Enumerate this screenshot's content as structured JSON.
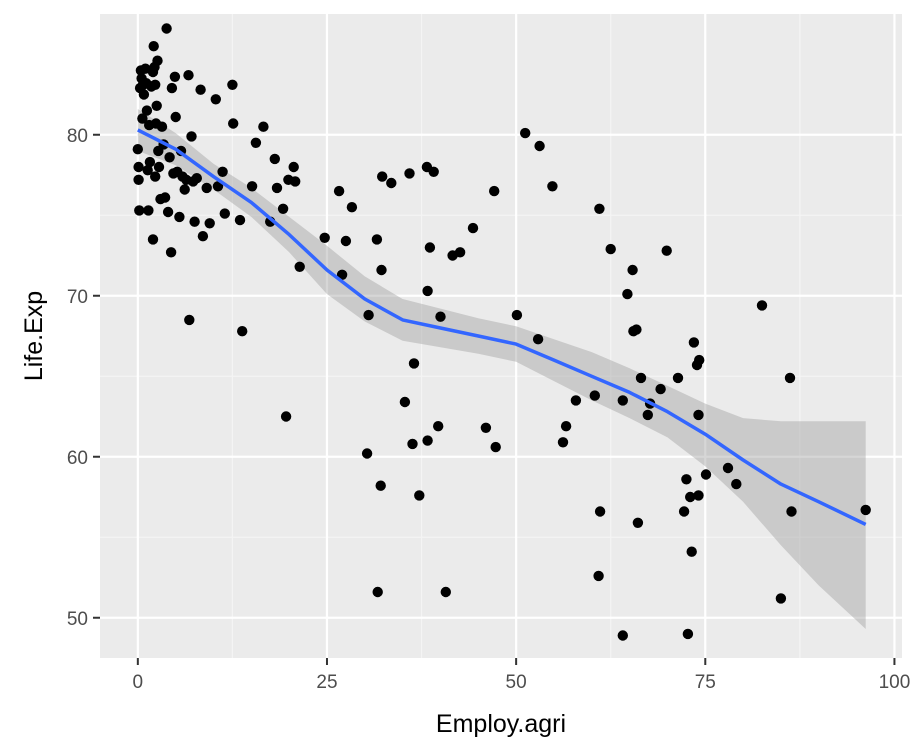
{
  "chart_data": {
    "type": "scatter",
    "xlabel": "Employ.agri",
    "ylabel": "Life.Exp",
    "xlim": [
      -5,
      101
    ],
    "ylim": [
      47.5,
      87.5
    ],
    "x_ticks": [
      0,
      25,
      50,
      75,
      100
    ],
    "x_tick_labels": [
      "0",
      "25",
      "50",
      "75",
      "100"
    ],
    "y_ticks": [
      50,
      60,
      70,
      80
    ],
    "y_tick_labels": [
      "50",
      "60",
      "70",
      "80"
    ],
    "grid": true,
    "legend": "none",
    "colors": {
      "panel": "#ebebeb",
      "grid_major": "#ffffff",
      "grid_minor": "#f4f4f4",
      "points": "#000000",
      "smooth_line": "#3366ff",
      "ribbon": "#999999"
    },
    "points": [
      [
        0.0,
        79.1
      ],
      [
        0.1,
        77.2
      ],
      [
        0.1,
        78.0
      ],
      [
        0.2,
        75.3
      ],
      [
        0.3,
        82.9
      ],
      [
        0.4,
        84.0
      ],
      [
        0.5,
        83.5
      ],
      [
        0.6,
        81.0
      ],
      [
        0.7,
        83.1
      ],
      [
        0.8,
        82.5
      ],
      [
        1.0,
        84.1
      ],
      [
        1.1,
        83.2
      ],
      [
        1.2,
        81.5
      ],
      [
        1.3,
        77.8
      ],
      [
        1.4,
        75.3
      ],
      [
        1.5,
        80.6
      ],
      [
        1.6,
        78.3
      ],
      [
        1.8,
        83.0
      ],
      [
        2.0,
        83.9
      ],
      [
        2.1,
        85.5
      ],
      [
        2.2,
        84.2
      ],
      [
        2.3,
        83.1
      ],
      [
        2.4,
        80.7
      ],
      [
        2.5,
        81.8
      ],
      [
        2.6,
        84.6
      ],
      [
        2.7,
        79.0
      ],
      [
        2.8,
        78.0
      ],
      [
        3.0,
        76.0
      ],
      [
        3.2,
        80.5
      ],
      [
        3.4,
        79.4
      ],
      [
        2.0,
        73.5
      ],
      [
        2.3,
        77.4
      ],
      [
        3.6,
        76.1
      ],
      [
        3.8,
        86.6
      ],
      [
        4.0,
        75.2
      ],
      [
        4.2,
        78.6
      ],
      [
        4.4,
        72.7
      ],
      [
        4.5,
        82.9
      ],
      [
        4.7,
        77.6
      ],
      [
        4.9,
        83.6
      ],
      [
        5.0,
        81.1
      ],
      [
        5.2,
        77.7
      ],
      [
        5.5,
        74.9
      ],
      [
        5.7,
        79.0
      ],
      [
        5.9,
        77.4
      ],
      [
        6.2,
        76.6
      ],
      [
        6.4,
        77.2
      ],
      [
        6.7,
        83.7
      ],
      [
        6.8,
        68.5
      ],
      [
        7.1,
        79.9
      ],
      [
        7.3,
        77.1
      ],
      [
        7.5,
        74.6
      ],
      [
        7.8,
        77.3
      ],
      [
        8.3,
        82.8
      ],
      [
        8.6,
        73.7
      ],
      [
        9.1,
        76.7
      ],
      [
        9.5,
        74.5
      ],
      [
        10.3,
        82.2
      ],
      [
        10.6,
        76.8
      ],
      [
        11.2,
        77.7
      ],
      [
        11.5,
        75.1
      ],
      [
        12.5,
        83.1
      ],
      [
        12.6,
        80.7
      ],
      [
        13.5,
        74.7
      ],
      [
        13.8,
        67.8
      ],
      [
        15.1,
        76.8
      ],
      [
        15.6,
        79.5
      ],
      [
        16.6,
        80.5
      ],
      [
        17.5,
        74.6
      ],
      [
        18.1,
        78.5
      ],
      [
        18.4,
        76.7
      ],
      [
        19.2,
        75.4
      ],
      [
        19.6,
        62.5
      ],
      [
        19.9,
        77.2
      ],
      [
        20.6,
        78.0
      ],
      [
        20.8,
        77.1
      ],
      [
        21.4,
        71.8
      ],
      [
        24.7,
        73.6
      ],
      [
        26.6,
        76.5
      ],
      [
        27.0,
        71.3
      ],
      [
        27.5,
        73.4
      ],
      [
        28.3,
        75.5
      ],
      [
        30.3,
        60.2
      ],
      [
        30.5,
        68.8
      ],
      [
        31.6,
        73.5
      ],
      [
        31.7,
        51.6
      ],
      [
        32.1,
        58.2
      ],
      [
        32.2,
        71.6
      ],
      [
        32.3,
        77.4
      ],
      [
        33.5,
        77.0
      ],
      [
        35.3,
        63.4
      ],
      [
        35.9,
        77.6
      ],
      [
        36.3,
        60.8
      ],
      [
        36.5,
        65.8
      ],
      [
        37.2,
        57.6
      ],
      [
        38.2,
        78.0
      ],
      [
        38.3,
        61.0
      ],
      [
        38.3,
        70.3
      ],
      [
        38.6,
        73.0
      ],
      [
        39.1,
        77.7
      ],
      [
        39.7,
        61.9
      ],
      [
        40.0,
        68.7
      ],
      [
        40.7,
        51.6
      ],
      [
        41.6,
        72.5
      ],
      [
        42.6,
        72.7
      ],
      [
        44.3,
        74.2
      ],
      [
        46.0,
        61.8
      ],
      [
        47.1,
        76.5
      ],
      [
        47.3,
        60.6
      ],
      [
        50.1,
        68.8
      ],
      [
        51.2,
        80.1
      ],
      [
        52.9,
        67.3
      ],
      [
        53.1,
        79.3
      ],
      [
        54.8,
        76.8
      ],
      [
        56.2,
        60.9
      ],
      [
        56.6,
        61.9
      ],
      [
        57.9,
        63.5
      ],
      [
        60.4,
        63.8
      ],
      [
        60.9,
        52.6
      ],
      [
        61.0,
        75.4
      ],
      [
        61.1,
        56.6
      ],
      [
        62.5,
        72.9
      ],
      [
        64.1,
        48.9
      ],
      [
        64.1,
        63.5
      ],
      [
        64.7,
        70.1
      ],
      [
        65.4,
        71.6
      ],
      [
        65.5,
        67.8
      ],
      [
        65.9,
        67.9
      ],
      [
        66.1,
        55.9
      ],
      [
        66.5,
        64.9
      ],
      [
        67.4,
        62.6
      ],
      [
        67.7,
        63.3
      ],
      [
        69.1,
        64.2
      ],
      [
        69.9,
        72.8
      ],
      [
        71.4,
        64.9
      ],
      [
        72.2,
        56.6
      ],
      [
        72.5,
        58.6
      ],
      [
        72.7,
        49.0
      ],
      [
        73.0,
        57.5
      ],
      [
        73.2,
        54.1
      ],
      [
        73.5,
        67.1
      ],
      [
        73.9,
        65.7
      ],
      [
        74.1,
        57.6
      ],
      [
        74.1,
        62.6
      ],
      [
        74.2,
        66.0
      ],
      [
        75.1,
        58.9
      ],
      [
        78.0,
        59.3
      ],
      [
        79.1,
        58.3
      ],
      [
        82.5,
        69.4
      ],
      [
        85.0,
        51.2
      ],
      [
        86.2,
        64.9
      ],
      [
        86.4,
        56.6
      ],
      [
        96.2,
        56.7
      ]
    ],
    "smooth_line": [
      [
        0,
        80.3
      ],
      [
        5,
        79.1
      ],
      [
        10,
        77.4
      ],
      [
        15,
        75.8
      ],
      [
        20,
        73.8
      ],
      [
        25,
        71.6
      ],
      [
        30,
        69.8
      ],
      [
        35,
        68.5
      ],
      [
        40,
        68.0
      ],
      [
        45,
        67.5
      ],
      [
        50,
        67.0
      ],
      [
        55,
        66.0
      ],
      [
        60,
        65.0
      ],
      [
        65,
        64.0
      ],
      [
        70,
        62.8
      ],
      [
        75,
        61.4
      ],
      [
        80,
        59.8
      ],
      [
        85,
        58.3
      ],
      [
        90,
        57.2
      ],
      [
        96.2,
        55.8
      ]
    ],
    "ribbon_upper": [
      [
        0,
        81.6
      ],
      [
        5,
        80.1
      ],
      [
        10,
        78.2
      ],
      [
        15,
        76.7
      ],
      [
        20,
        74.9
      ],
      [
        25,
        73.1
      ],
      [
        30,
        71.2
      ],
      [
        35,
        69.8
      ],
      [
        40,
        69.2
      ],
      [
        45,
        68.6
      ],
      [
        50,
        68.1
      ],
      [
        55,
        67.3
      ],
      [
        60,
        66.5
      ],
      [
        65,
        65.5
      ],
      [
        70,
        64.4
      ],
      [
        75,
        63.3
      ],
      [
        80,
        62.4
      ],
      [
        85,
        62.2
      ],
      [
        90,
        62.2
      ],
      [
        96.2,
        62.2
      ]
    ],
    "ribbon_lower": [
      [
        0,
        79.0
      ],
      [
        5,
        78.1
      ],
      [
        10,
        76.6
      ],
      [
        15,
        74.9
      ],
      [
        20,
        72.7
      ],
      [
        25,
        70.1
      ],
      [
        30,
        68.4
      ],
      [
        35,
        67.2
      ],
      [
        40,
        66.8
      ],
      [
        45,
        66.4
      ],
      [
        50,
        65.9
      ],
      [
        55,
        64.7
      ],
      [
        60,
        63.5
      ],
      [
        65,
        62.4
      ],
      [
        70,
        61.2
      ],
      [
        75,
        59.4
      ],
      [
        80,
        57.2
      ],
      [
        85,
        54.5
      ],
      [
        90,
        52.0
      ],
      [
        96.2,
        49.3
      ]
    ]
  }
}
